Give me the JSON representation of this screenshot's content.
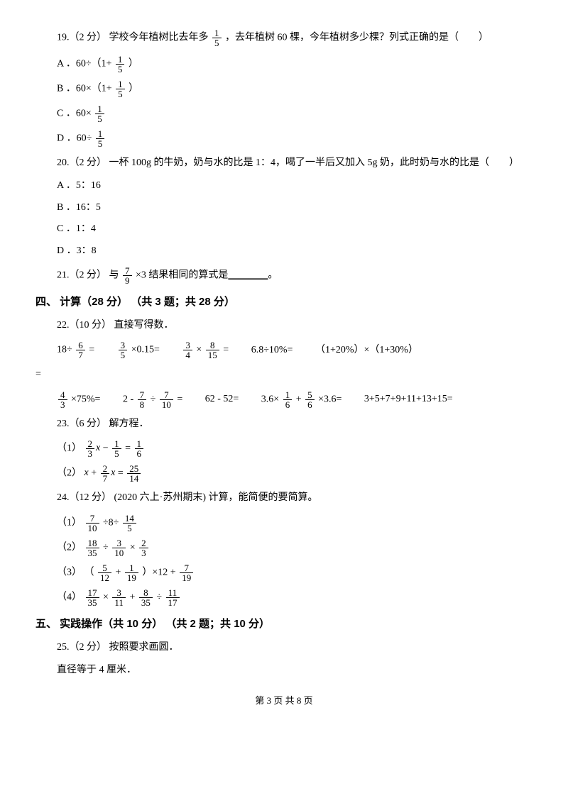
{
  "q19": {
    "stem_a": "19.（2 分） 学校今年植树比去年多 ",
    "frac": {
      "n": "1",
      "d": "5"
    },
    "stem_b": " ，去年植树 60 棵，今年植树多少棵？列式正确的是（　　）",
    "A_pre": "A ．60÷（1+ ",
    "A_frac": {
      "n": "1",
      "d": "5"
    },
    "A_post": " ）",
    "B_pre": "B ．60×（1+ ",
    "B_frac": {
      "n": "1",
      "d": "5"
    },
    "B_post": " ）",
    "C_pre": "C ．60× ",
    "C_frac": {
      "n": "1",
      "d": "5"
    },
    "D_pre": "D ．60÷ ",
    "D_frac": {
      "n": "1",
      "d": "5"
    }
  },
  "q20": {
    "stem": "20.（2 分） 一杯 100g 的牛奶，奶与水的比是 1：4，喝了一半后又加入 5g 奶，此时奶与水的比是（　　）",
    "A": "A ．5：16",
    "B": "B ．16：5",
    "C": "C ．1：4",
    "D": "D ．3：8"
  },
  "q21": {
    "pre": "21.（2 分） 与 ",
    "frac": {
      "n": "7",
      "d": "9"
    },
    "mid": " ×3 结果相同的算式是",
    "blank": "________",
    "post": "。"
  },
  "sec4": "四、 计算（28 分） （共 3 题；共 28 分）",
  "q22": {
    "stem": "22.（10 分） 直接写得数．",
    "r1": {
      "c1_pre": "18÷ ",
      "c1_frac": {
        "n": "6",
        "d": "7"
      },
      "c1_post": " =",
      "c2_frac": {
        "n": "3",
        "d": "5"
      },
      "c2_post": " ×0.15=",
      "c3_f1": {
        "n": "3",
        "d": "4"
      },
      "c3_mid": " × ",
      "c3_f2": {
        "n": "8",
        "d": "15"
      },
      "c3_post": " =",
      "c4": "6.8÷10%=",
      "c5": "（1+20%）×（1+30%）"
    },
    "eqline": "=",
    "r2": {
      "c1_frac": {
        "n": "4",
        "d": "3"
      },
      "c1_post": " ×75%=",
      "c2_pre": "2 - ",
      "c2_f1": {
        "n": "7",
        "d": "8"
      },
      "c2_mid": " ÷ ",
      "c2_f2": {
        "n": "7",
        "d": "10"
      },
      "c2_post": " =",
      "c3": "62 - 52=",
      "c4_pre": "3.6× ",
      "c4_f1": {
        "n": "1",
        "d": "6"
      },
      "c4_mid": " + ",
      "c4_f2": {
        "n": "5",
        "d": "6"
      },
      "c4_post": " ×3.6=",
      "c5": "3+5+7+9+11+13+15="
    }
  },
  "q23": {
    "stem": "23.（6 分） 解方程．",
    "e1_label": "（1）",
    "e1_a": {
      "n": "2",
      "d": "3"
    },
    "e1_x": "x",
    "e1_m": " − ",
    "e1_b": {
      "n": "1",
      "d": "5"
    },
    "e1_eq": " = ",
    "e1_c": {
      "n": "1",
      "d": "6"
    },
    "e2_label": "（2）",
    "e2_x1": "x",
    "e2_p": " + ",
    "e2_a": {
      "n": "2",
      "d": "7"
    },
    "e2_x2": "x",
    "e2_eq": " = ",
    "e2_b": {
      "n": "25",
      "d": "14"
    }
  },
  "q24": {
    "stem": "24.（12 分） (2020 六上·苏州期末) 计算，能简便的要简算。",
    "l1_label": "（1）",
    "l1_a": {
      "n": "7",
      "d": "10"
    },
    "l1_m1": " ÷8÷ ",
    "l1_b": {
      "n": "14",
      "d": "5"
    },
    "l2_label": "（2）",
    "l2_a": {
      "n": "18",
      "d": "35"
    },
    "l2_m1": " ÷ ",
    "l2_b": {
      "n": "3",
      "d": "10"
    },
    "l2_m2": " × ",
    "l2_c": {
      "n": "2",
      "d": "3"
    },
    "l3_label": "（3）",
    "l3_pre": "（ ",
    "l3_a": {
      "n": "5",
      "d": "12"
    },
    "l3_m1": " + ",
    "l3_b": {
      "n": "1",
      "d": "19"
    },
    "l3_mid": " ）×12 + ",
    "l3_c": {
      "n": "7",
      "d": "19"
    },
    "l4_label": "（4）",
    "l4_a": {
      "n": "17",
      "d": "35"
    },
    "l4_m1": " × ",
    "l4_b": {
      "n": "3",
      "d": "11"
    },
    "l4_m2": " + ",
    "l4_c": {
      "n": "8",
      "d": "35"
    },
    "l4_m3": " ÷ ",
    "l4_d": {
      "n": "11",
      "d": "17"
    }
  },
  "sec5": "五、 实践操作（共 10 分） （共 2 题；共 10 分）",
  "q25": {
    "stem": "25.（2 分） 按照要求画圆．",
    "line": "直径等于 4 厘米．"
  },
  "footer": "第 3 页 共 8 页"
}
